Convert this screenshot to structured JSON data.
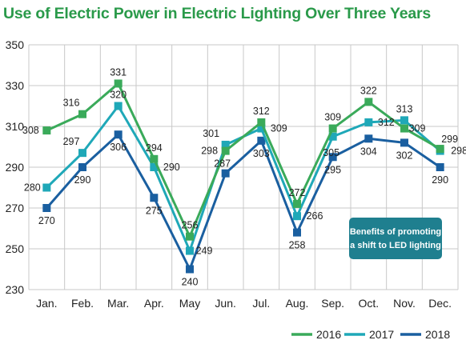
{
  "colors": {
    "title": "#2a9a4a",
    "gridline": "#c8c8c8",
    "axis": "#999999",
    "callout_bg": "#1f7f8f",
    "callout_text": "#ffffff"
  },
  "chart_data": {
    "type": "line",
    "title": "Use of Electric Power in Electric Lighting Over Three Years",
    "xlabel": "",
    "ylabel": "",
    "categories": [
      "Jan.",
      "Feb.",
      "Mar.",
      "Apr.",
      "May",
      "Jun.",
      "Jul.",
      "Aug.",
      "Sep.",
      "Oct.",
      "Nov.",
      "Dec."
    ],
    "ylim": [
      230,
      350
    ],
    "yticks": [
      230,
      250,
      270,
      290,
      310,
      330,
      350
    ],
    "grid": true,
    "legend_position": "bottom-right",
    "series": [
      {
        "name": "2016",
        "color": "#3aaa5a",
        "values": [
          308,
          316,
          331,
          294,
          256,
          298,
          312,
          272,
          309,
          322,
          309,
          299
        ]
      },
      {
        "name": "2017",
        "color": "#1fa8b8",
        "values": [
          280,
          297,
          320,
          290,
          249,
          301,
          309,
          266,
          305,
          312,
          313,
          298
        ]
      },
      {
        "name": "2018",
        "color": "#1a5fa0",
        "values": [
          270,
          290,
          306,
          275,
          240,
          287,
          303,
          258,
          295,
          304,
          302,
          290
        ]
      }
    ],
    "annotation": {
      "lines": [
        "Benefits of promoting",
        "a shift to LED lighting"
      ]
    }
  }
}
